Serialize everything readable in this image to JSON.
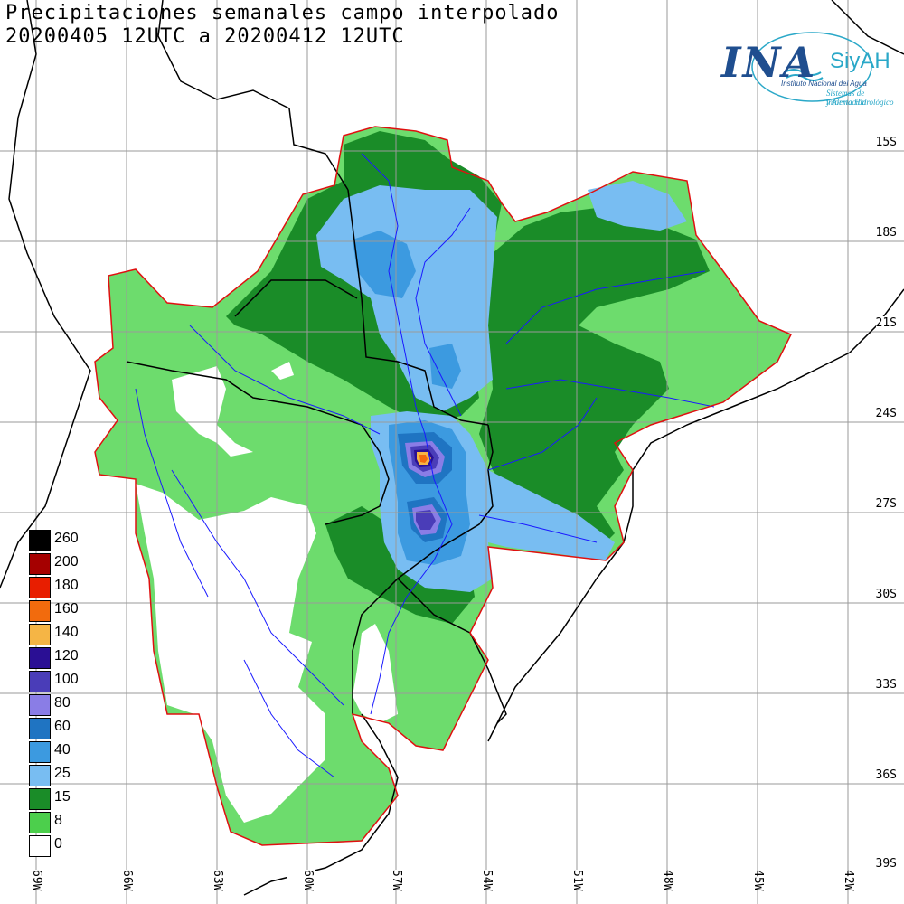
{
  "title": {
    "line1": "Precipitaciones semanales campo interpolado",
    "line2": "20200405 12UTC a 20200412 12UTC"
  },
  "logo": {
    "main": "INA",
    "system": "SiyAH",
    "institution": "Instituto Nacional del Agua",
    "subtitle1": "Sistemas de información",
    "subtitle2": "y Alerta Hidrológico"
  },
  "legend": [
    {
      "label": "260",
      "color": "#000000"
    },
    {
      "label": "200",
      "color": "#a50000"
    },
    {
      "label": "180",
      "color": "#e81e00"
    },
    {
      "label": "160",
      "color": "#f26b0d"
    },
    {
      "label": "140",
      "color": "#f5b545"
    },
    {
      "label": "120",
      "color": "#2a0f94"
    },
    {
      "label": "100",
      "color": "#4a3db8"
    },
    {
      "label": "80",
      "color": "#8a7de6"
    },
    {
      "label": "60",
      "color": "#1f74c2"
    },
    {
      "label": "40",
      "color": "#3c9ae0"
    },
    {
      "label": "25",
      "color": "#78bdf2"
    },
    {
      "label": "15",
      "color": "#1a8c28"
    },
    {
      "label": "8",
      "color": "#4ccf4c"
    },
    {
      "label": "0",
      "color": "#ffffff"
    }
  ],
  "lat_labels": [
    "15S",
    "18S",
    "21S",
    "24S",
    "27S",
    "30S",
    "33S",
    "36S",
    "39S"
  ],
  "lon_labels": [
    "69W",
    "66W",
    "63W",
    "60W",
    "57W",
    "54W",
    "51W",
    "48W",
    "45W",
    "42W"
  ],
  "colors": {
    "grid": "#9a9a9a",
    "basin_outline": "#e01010",
    "rivers": "#1a1aff",
    "borders": "#000000"
  }
}
